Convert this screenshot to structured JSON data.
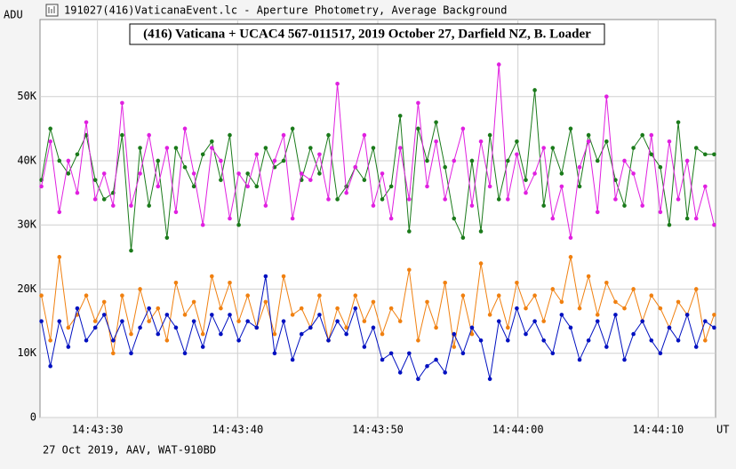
{
  "window_title": "191027(416)VaticanaEvent.lc - Aperture Photometry, Average Background",
  "footer": "27 Oct 2019, AAV, WAT-910BD",
  "chart_data": {
    "type": "line",
    "title": "(416) Vaticana + UCAC4 567-011517, 2019 October 27, Darfield NZ, B. Loader",
    "y_label": "ADU",
    "x_label": "UT",
    "x": [
      26.0,
      26.64,
      27.28,
      27.92,
      28.56,
      29.2,
      29.84,
      30.48,
      31.12,
      31.76,
      32.4,
      33.04,
      33.68,
      34.32,
      34.96,
      35.6,
      36.24,
      36.88,
      37.52,
      38.16,
      38.8,
      39.44,
      40.08,
      40.72,
      41.36,
      42.0,
      42.64,
      43.28,
      43.92,
      44.56,
      45.2,
      45.84,
      46.48,
      47.12,
      47.76,
      48.4,
      49.04,
      49.68,
      50.32,
      50.96,
      51.6,
      52.24,
      52.88,
      53.52,
      54.16,
      54.8,
      55.44,
      56.08,
      56.72,
      57.36,
      58.0,
      58.64,
      59.28,
      59.92,
      60.56,
      61.2,
      61.84,
      62.48,
      63.12,
      63.76,
      64.4,
      65.04,
      65.68,
      66.32,
      66.96,
      67.6,
      68.24,
      68.88,
      69.52,
      70.16,
      70.8,
      71.44,
      72.08,
      72.72,
      73.36,
      74.0
    ],
    "xlim": [
      25.9,
      74.1
    ],
    "xticks": [
      {
        "value": 30,
        "label": "14:43:30"
      },
      {
        "value": 40,
        "label": "14:43:40"
      },
      {
        "value": 50,
        "label": "14:43:50"
      },
      {
        "value": 60,
        "label": "14:44:00"
      },
      {
        "value": 70,
        "label": "14:44:10"
      }
    ],
    "ylim": [
      0,
      62000
    ],
    "yticks": [
      0,
      {
        "value": 10000,
        "label": "10K"
      },
      {
        "value": 20000,
        "label": "20K"
      },
      {
        "value": 30000,
        "label": "30K"
      },
      {
        "value": 40000,
        "label": "40K"
      },
      {
        "value": 50000,
        "label": "50K"
      }
    ],
    "grid": true,
    "series": [
      {
        "color": "#1a7a1a",
        "values": [
          37000,
          45000,
          40000,
          38000,
          41000,
          44000,
          37000,
          34000,
          35000,
          44000,
          26000,
          42000,
          33000,
          40000,
          28000,
          42000,
          39000,
          36000,
          41000,
          43000,
          37000,
          44000,
          30000,
          38000,
          36000,
          42000,
          39000,
          40000,
          45000,
          37000,
          42000,
          38000,
          44000,
          34000,
          36000,
          39000,
          37000,
          42000,
          34000,
          36000,
          47000,
          29000,
          45000,
          40000,
          46000,
          39000,
          31000,
          28000,
          40000,
          29000,
          44000,
          34000,
          40000,
          43000,
          37000,
          51000,
          33000,
          42000,
          38000,
          45000,
          36000,
          44000,
          40000,
          43000,
          37000,
          33000,
          42000,
          44000,
          41000,
          39000,
          30000,
          46000,
          31000,
          42000,
          41000,
          41000
        ]
      },
      {
        "color": "#e020e0",
        "values": [
          36000,
          43000,
          32000,
          40000,
          35000,
          46000,
          34000,
          38000,
          33000,
          49000,
          33000,
          38000,
          44000,
          36000,
          42000,
          32000,
          45000,
          38000,
          30000,
          42000,
          40000,
          31000,
          38000,
          36000,
          41000,
          33000,
          40000,
          44000,
          31000,
          38000,
          37000,
          41000,
          34000,
          52000,
          35000,
          39000,
          44000,
          33000,
          38000,
          31000,
          42000,
          34000,
          49000,
          36000,
          43000,
          34000,
          40000,
          45000,
          33000,
          43000,
          36000,
          55000,
          34000,
          41000,
          35000,
          38000,
          42000,
          31000,
          36000,
          28000,
          39000,
          43000,
          32000,
          50000,
          34000,
          40000,
          38000,
          33000,
          44000,
          32000,
          43000,
          34000,
          40000,
          31000,
          36000,
          30000
        ]
      },
      {
        "color": "#f08010",
        "values": [
          19000,
          12000,
          25000,
          14000,
          16000,
          19000,
          15000,
          18000,
          10000,
          19000,
          13000,
          20000,
          15000,
          17000,
          12000,
          21000,
          16000,
          18000,
          13000,
          22000,
          17000,
          21000,
          15000,
          19000,
          14000,
          18000,
          13000,
          22000,
          16000,
          17000,
          14000,
          19000,
          12000,
          17000,
          14000,
          19000,
          15000,
          18000,
          13000,
          17000,
          15000,
          23000,
          12000,
          18000,
          14000,
          21000,
          11000,
          19000,
          13000,
          24000,
          16000,
          19000,
          14000,
          21000,
          17000,
          19000,
          15000,
          20000,
          18000,
          25000,
          17000,
          22000,
          16000,
          21000,
          18000,
          17000,
          20000,
          15000,
          19000,
          17000,
          14000,
          18000,
          16000,
          20000,
          12000,
          16000
        ]
      },
      {
        "color": "#0010c0",
        "values": [
          15000,
          8000,
          15000,
          11000,
          17000,
          12000,
          14000,
          16000,
          12000,
          15000,
          10000,
          14000,
          17000,
          13000,
          16000,
          14000,
          10000,
          15000,
          11000,
          16000,
          13000,
          16000,
          12000,
          15000,
          14000,
          22000,
          10000,
          15000,
          9000,
          13000,
          14000,
          16000,
          12000,
          15000,
          13000,
          17000,
          11000,
          14000,
          9000,
          10000,
          7000,
          10000,
          6000,
          8000,
          9000,
          7000,
          13000,
          10000,
          14000,
          12000,
          6000,
          15000,
          12000,
          17000,
          13000,
          15000,
          12000,
          10000,
          16000,
          14000,
          9000,
          12000,
          15000,
          11000,
          16000,
          9000,
          13000,
          15000,
          12000,
          10000,
          14000,
          12000,
          16000,
          11000,
          15000,
          14000
        ]
      }
    ]
  }
}
